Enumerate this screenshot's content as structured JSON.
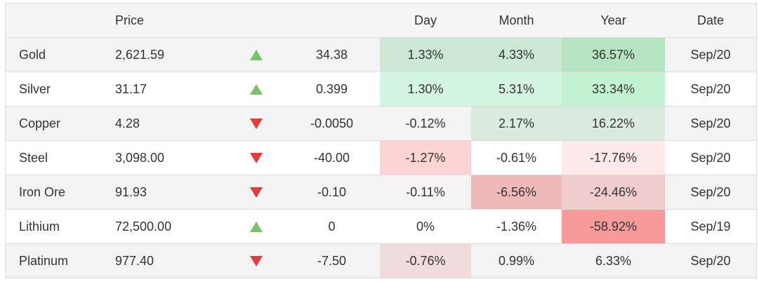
{
  "colors": {
    "up_arrow": "#77c36a",
    "down_arrow": "#e63b3b"
  },
  "header": {
    "name": "",
    "price": "Price",
    "arrow": "",
    "change": "",
    "day": "Day",
    "month": "Month",
    "year": "Year",
    "date": "Date"
  },
  "rows": [
    {
      "name": "Gold",
      "price": "2,621.59",
      "direction": "up",
      "change": "34.38",
      "day": "1.33%",
      "month": "4.33%",
      "year": "36.57%",
      "date": "Sep/20",
      "day_bg": "#cce8d4",
      "month_bg": "#cce8d4",
      "year_bg": "#b6e4c2"
    },
    {
      "name": "Silver",
      "price": "31.17",
      "direction": "up",
      "change": "0.399",
      "day": "1.30%",
      "month": "5.31%",
      "year": "33.34%",
      "date": "Sep/20",
      "day_bg": "#d4f6e0",
      "month_bg": "#d4f6e0",
      "year_bg": "#c2f2d1"
    },
    {
      "name": "Copper",
      "price": "4.28",
      "direction": "down",
      "change": "-0.0050",
      "day": "-0.12%",
      "month": "2.17%",
      "year": "16.22%",
      "date": "Sep/20",
      "day_bg": "",
      "month_bg": "#dcebe0",
      "year_bg": "#dcebe0"
    },
    {
      "name": "Steel",
      "price": "3,098.00",
      "direction": "down",
      "change": "-40.00",
      "day": "-1.27%",
      "month": "-0.61%",
      "year": "-17.76%",
      "date": "Sep/20",
      "day_bg": "#fdd4d4",
      "month_bg": "",
      "year_bg": "#fde9e9"
    },
    {
      "name": "Iron Ore",
      "price": "91.93",
      "direction": "down",
      "change": "-0.10",
      "day": "-0.11%",
      "month": "-6.56%",
      "year": "-24.46%",
      "date": "Sep/20",
      "day_bg": "",
      "month_bg": "#efb9b9",
      "year_bg": "#f0cccc"
    },
    {
      "name": "Lithium",
      "price": "72,500.00",
      "direction": "up",
      "change": "0",
      "day": "0%",
      "month": "-1.36%",
      "year": "-58.92%",
      "date": "Sep/19",
      "day_bg": "",
      "month_bg": "",
      "year_bg": "#f99a9a"
    },
    {
      "name": "Platinum",
      "price": "977.40",
      "direction": "down",
      "change": "-7.50",
      "day": "-0.76%",
      "month": "0.99%",
      "year": "6.33%",
      "date": "Sep/20",
      "day_bg": "#f0dcdc",
      "month_bg": "",
      "year_bg": ""
    }
  ]
}
